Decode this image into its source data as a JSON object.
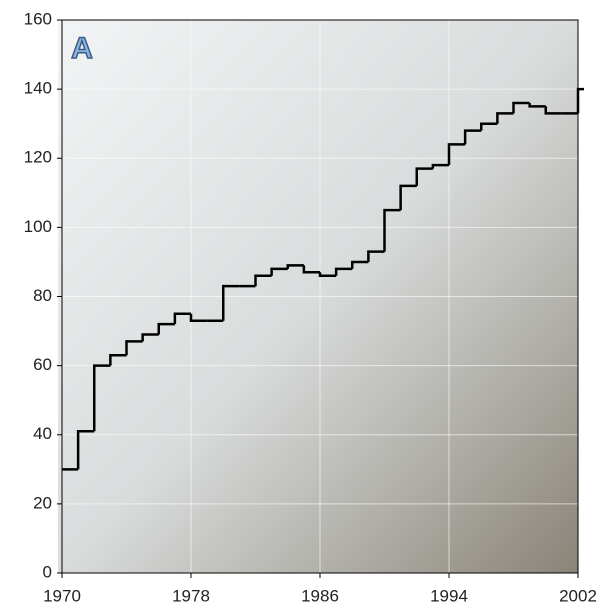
{
  "chart_data": {
    "type": "step",
    "annotation": "A",
    "x": [
      1970,
      1971,
      1972,
      1973,
      1974,
      1975,
      1976,
      1977,
      1978,
      1979,
      1980,
      1981,
      1982,
      1983,
      1984,
      1985,
      1986,
      1987,
      1988,
      1989,
      1990,
      1991,
      1992,
      1993,
      1994,
      1995,
      1996,
      1997,
      1998,
      1999,
      2000,
      2001,
      2002
    ],
    "values": [
      30,
      41,
      60,
      63,
      67,
      69,
      72,
      75,
      73,
      73,
      83,
      83,
      86,
      88,
      89,
      87,
      86,
      88,
      90,
      93,
      105,
      112,
      117,
      118,
      124,
      128,
      130,
      133,
      136,
      135,
      133,
      133,
      140
    ],
    "color": "#000000",
    "xlim": [
      1970,
      2002
    ],
    "xticks": [
      1970,
      1978,
      1986,
      1994,
      2002
    ],
    "ylim": [
      0,
      160
    ],
    "yticks": [
      0,
      20,
      40,
      60,
      80,
      100,
      120,
      140,
      160
    ],
    "grid": true
  }
}
